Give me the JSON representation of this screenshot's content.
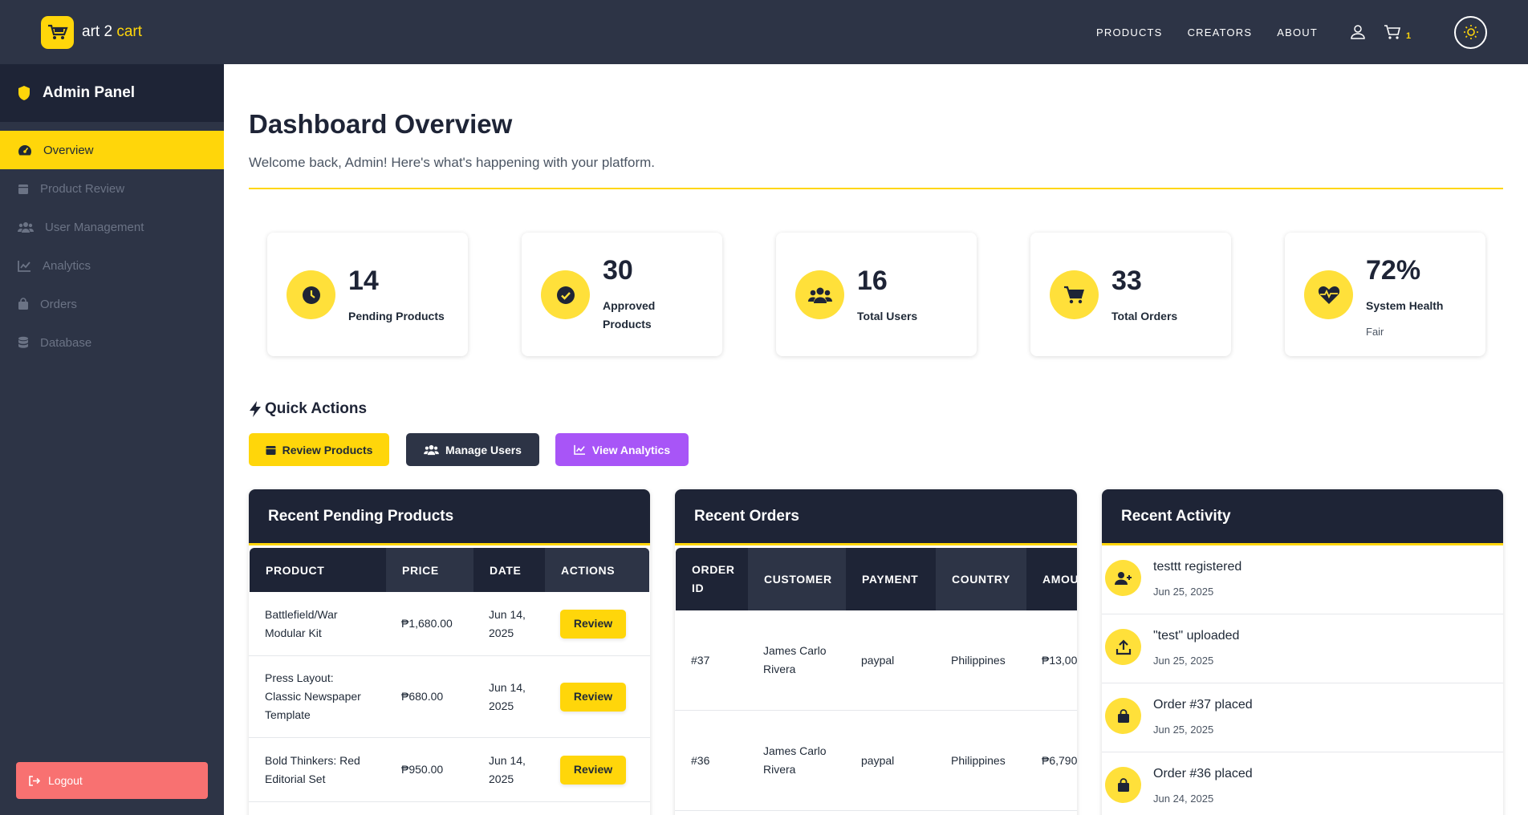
{
  "topbar": {
    "brand_prefix": "art 2",
    "brand_accent": "cart",
    "nav": [
      "PRODUCTS",
      "CREATORS",
      "ABOUT"
    ],
    "cart_count": "1",
    "accent_color": "#ffd60a"
  },
  "sidebar": {
    "title": "Admin Panel",
    "items": [
      {
        "label": "Overview",
        "icon": "dashboard-icon",
        "active": true
      },
      {
        "label": "Product Review",
        "icon": "box-icon",
        "active": false
      },
      {
        "label": "User Management",
        "icon": "users-icon",
        "active": false
      },
      {
        "label": "Analytics",
        "icon": "chart-line-icon",
        "active": false
      },
      {
        "label": "Orders",
        "icon": "shopping-bag-icon",
        "active": false
      },
      {
        "label": "Database",
        "icon": "database-icon",
        "active": false
      }
    ],
    "logout_label": "Logout"
  },
  "main": {
    "title": "Dashboard Overview",
    "subtitle": "Welcome back, Admin! Here's what's happening with your platform.",
    "stats": [
      {
        "value": "14",
        "label": "Pending Products",
        "icon": "clock-icon"
      },
      {
        "value": "30",
        "label_line1": "Approved",
        "label_line2": "Products",
        "icon": "check-circle-icon"
      },
      {
        "value": "16",
        "label": "Total Users",
        "icon": "users-icon"
      },
      {
        "value": "33",
        "label": "Total Orders",
        "icon": "cart-icon"
      },
      {
        "value": "72%",
        "label": "System Health",
        "sub": "Fair",
        "icon": "heart-pulse-icon"
      }
    ],
    "quick_actions": {
      "title": "Quick Actions",
      "review": "Review Products",
      "users": "Manage Users",
      "analytics": "View Analytics"
    },
    "pending": {
      "title": "Recent Pending Products",
      "columns": [
        "PRODUCT",
        "PRICE",
        "DATE",
        "ACTIONS"
      ],
      "rows": [
        {
          "product_l1": "Battlefield/War",
          "product_l2": "Modular Kit",
          "product_l3": "",
          "price": "₱1,680.00",
          "date_l1": "Jun 14,",
          "date_l2": "2025",
          "action": "Review"
        },
        {
          "product_l1": "Press Layout:",
          "product_l2": "Classic Newspaper",
          "product_l3": "Template",
          "price": "₱680.00",
          "date_l1": "Jun 14,",
          "date_l2": "2025",
          "action": "Review"
        },
        {
          "product_l1": "Bold Thinkers: Red",
          "product_l2": "Editorial Set",
          "product_l3": "",
          "price": "₱950.00",
          "date_l1": "Jun 14,",
          "date_l2": "2025",
          "action": "Review"
        }
      ]
    },
    "orders": {
      "title": "Recent Orders",
      "col_order_l1": "ORDER",
      "col_order_l2": "ID",
      "columns": [
        "CUSTOMER",
        "PAYMENT",
        "COUNTRY",
        "AMOU"
      ],
      "rows": [
        {
          "id": "#37",
          "customer_l1": "James Carlo",
          "customer_l2": "Rivera",
          "payment": "paypal",
          "country": "Philippines",
          "amount": "₱13,00"
        },
        {
          "id": "#36",
          "customer_l1": "James Carlo",
          "customer_l2": "Rivera",
          "payment": "paypal",
          "country": "Philippines",
          "amount": "₱6,790"
        }
      ]
    },
    "activity": {
      "title": "Recent Activity",
      "items": [
        {
          "title": "testtt registered",
          "date": "Jun 25, 2025",
          "icon": "user-plus-icon"
        },
        {
          "title": "\"test\" uploaded",
          "date": "Jun 25, 2025",
          "icon": "upload-icon"
        },
        {
          "title": "Order #37 placed",
          "date": "Jun 25, 2025",
          "icon": "shopping-bag-icon"
        },
        {
          "title": "Order #36 placed",
          "date": "Jun 24, 2025",
          "icon": "shopping-bag-icon"
        }
      ]
    }
  }
}
